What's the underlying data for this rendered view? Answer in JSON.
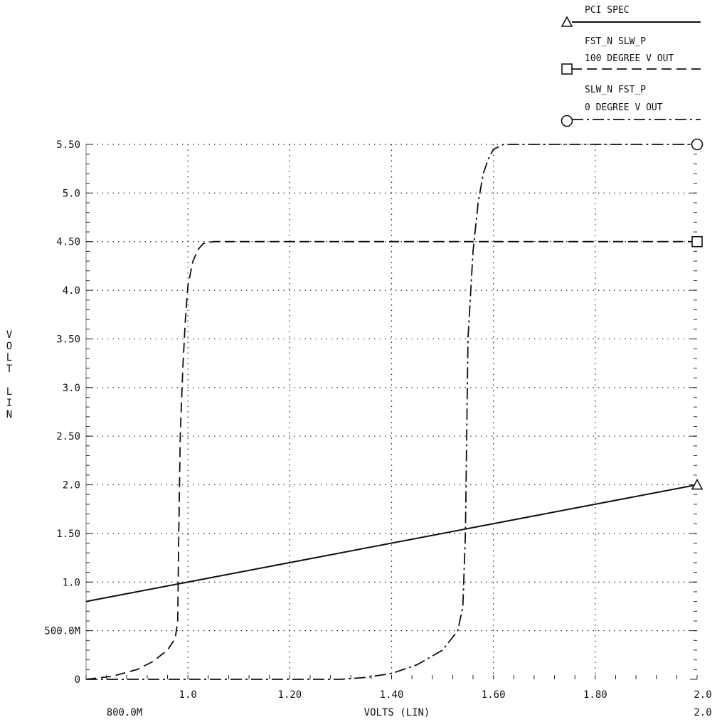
{
  "chart_data": {
    "type": "line",
    "xlabel": "VOLTS (LIN)",
    "ylabel": "VOLT LIN",
    "xlim": [
      0.8,
      2.0
    ],
    "ylim": [
      0,
      5.5
    ],
    "x_ticks": [
      {
        "value": 1.0,
        "label": "1.0"
      },
      {
        "value": 1.2,
        "label": "1.20"
      },
      {
        "value": 1.4,
        "label": "1.40"
      },
      {
        "value": 1.6,
        "label": "1.60"
      },
      {
        "value": 1.8,
        "label": "1.80"
      },
      {
        "value": 2.0,
        "label": "2.0"
      }
    ],
    "x_range_labels": {
      "min": "800.0M",
      "max": "2.0"
    },
    "y_ticks": [
      {
        "value": 0,
        "label": "0"
      },
      {
        "value": 0.5,
        "label": "500.0M"
      },
      {
        "value": 1.0,
        "label": "1.0"
      },
      {
        "value": 1.5,
        "label": "1.50"
      },
      {
        "value": 2.0,
        "label": "2.0"
      },
      {
        "value": 2.5,
        "label": "2.50"
      },
      {
        "value": 3.0,
        "label": "3.0"
      },
      {
        "value": 3.5,
        "label": "3.50"
      },
      {
        "value": 4.0,
        "label": "4.0"
      },
      {
        "value": 4.5,
        "label": "4.50"
      },
      {
        "value": 5.0,
        "label": "5.0"
      },
      {
        "value": 5.5,
        "label": "5.50"
      }
    ],
    "grid": true,
    "legend_position": "top-right",
    "series": [
      {
        "name": "PCI SPEC",
        "legend_lines": [
          "PCI SPEC"
        ],
        "marker": "triangle",
        "style": "solid",
        "x": [
          0.8,
          2.0
        ],
        "y": [
          0.8,
          2.0
        ]
      },
      {
        "name": "FST_N SLW_P 100 DEGREE V OUT",
        "legend_lines": [
          "FST_N SLW_P",
          "100 DEGREE V OUT"
        ],
        "marker": "square",
        "style": "dashed",
        "x": [
          0.8,
          0.85,
          0.9,
          0.93,
          0.96,
          0.975,
          0.98,
          0.982,
          0.985,
          0.99,
          0.995,
          1.0,
          1.01,
          1.02,
          1.03,
          1.05,
          1.1,
          2.0
        ],
        "y": [
          0.0,
          0.03,
          0.1,
          0.18,
          0.3,
          0.42,
          0.6,
          1.5,
          2.5,
          3.2,
          3.7,
          4.05,
          4.3,
          4.42,
          4.48,
          4.5,
          4.5,
          4.5
        ]
      },
      {
        "name": "SLW_N FST_P 0 DEGREE V OUT",
        "legend_lines": [
          "SLW_N FST_P",
          "0 DEGREE V OUT"
        ],
        "marker": "circle",
        "style": "dash-dot",
        "x": [
          0.8,
          1.3,
          1.35,
          1.4,
          1.45,
          1.5,
          1.53,
          1.54,
          1.545,
          1.55,
          1.56,
          1.57,
          1.58,
          1.59,
          1.6,
          1.62,
          2.0
        ],
        "y": [
          0.0,
          0.0,
          0.02,
          0.06,
          0.15,
          0.3,
          0.5,
          0.75,
          1.5,
          3.5,
          4.4,
          4.9,
          5.2,
          5.35,
          5.45,
          5.5,
          5.5
        ]
      }
    ]
  }
}
